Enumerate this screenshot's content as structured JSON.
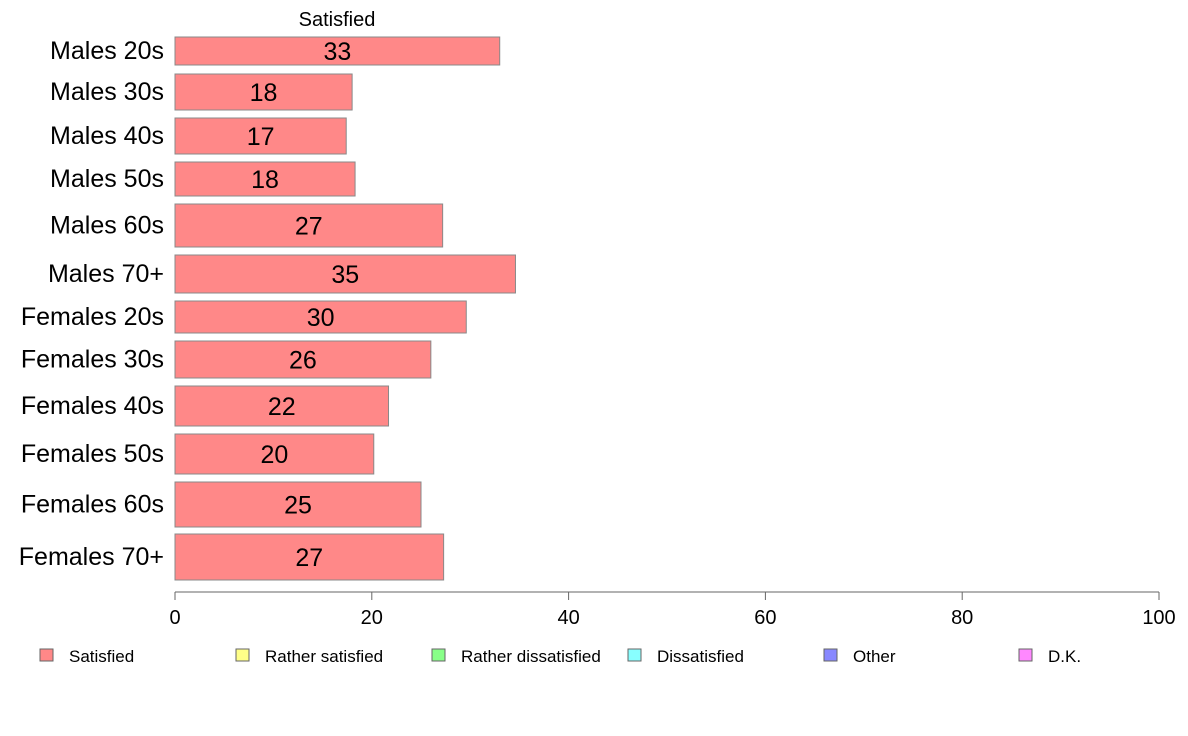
{
  "chart_data": {
    "type": "bar",
    "orientation": "horizontal",
    "stacked": true,
    "column_label": "Satisfied",
    "categories": [
      "Males 20s",
      "Males 30s",
      "Males 40s",
      "Males 50s",
      "Males 60s",
      "Males 70+",
      "Females 20s",
      "Females 30s",
      "Females 40s",
      "Females 50s",
      "Females 60s",
      "Females 70+"
    ],
    "series": [
      {
        "name": "Satisfied",
        "color": "#ff8888",
        "values": [
          33.0,
          18.0,
          17.4,
          18.3,
          27.2,
          34.6,
          29.6,
          26.0,
          21.7,
          20.2,
          25.0,
          27.3
        ],
        "labels": [
          "33",
          "18",
          "17",
          "18",
          "27",
          "35",
          "30",
          "26",
          "22",
          "20",
          "25",
          "27"
        ]
      }
    ],
    "legend": [
      {
        "name": "Satisfied",
        "color": "#ff8888"
      },
      {
        "name": "Rather satisfied",
        "color": "#ffff88"
      },
      {
        "name": "Rather dissatisfied",
        "color": "#88ff88"
      },
      {
        "name": "Dissatisfied",
        "color": "#88ffff"
      },
      {
        "name": "Other",
        "color": "#8888ff"
      },
      {
        "name": "D.K.",
        "color": "#ff88ff"
      }
    ],
    "legend_position": "bottom",
    "xlim": [
      0,
      100
    ],
    "xticks": [
      "0",
      "20",
      "40",
      "60",
      "80",
      "100"
    ],
    "grid": false
  }
}
